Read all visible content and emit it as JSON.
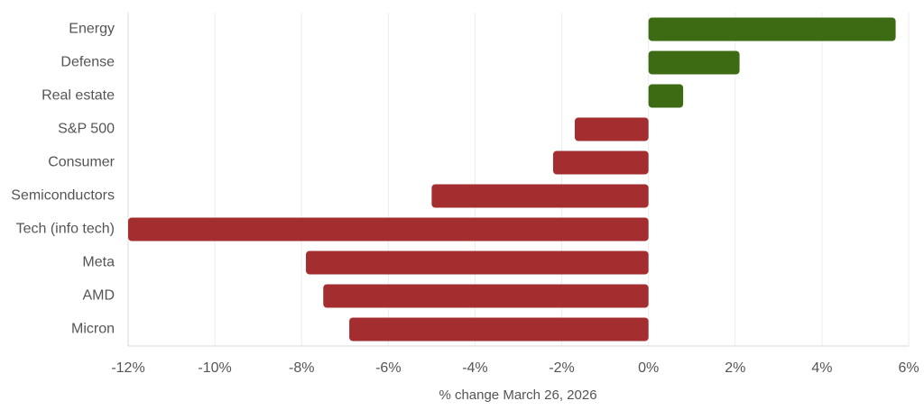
{
  "chart_data": {
    "type": "bar",
    "orientation": "horizontal",
    "x_label": "% change March 26, 2026",
    "categories": [
      "Energy",
      "Defense",
      "Real estate",
      "S&P 500",
      "Consumer",
      "Semiconductors",
      "Tech (info tech)",
      "Meta",
      "AMD",
      "Micron"
    ],
    "values": [
      5.7,
      2.1,
      0.8,
      -1.7,
      -2.2,
      -5.0,
      -12.0,
      -7.9,
      -7.5,
      -6.9
    ],
    "positive_color": "#3d6b14",
    "negative_color": "#a32d2f",
    "xlim": [
      -12,
      6
    ],
    "xticks": [
      {
        "value": -12,
        "label": "-12%"
      },
      {
        "value": -10,
        "label": "-10%"
      },
      {
        "value": -8,
        "label": "-8%"
      },
      {
        "value": -6,
        "label": "-6%"
      },
      {
        "value": -4,
        "label": "-4%"
      },
      {
        "value": -2,
        "label": "-2%"
      },
      {
        "value": 0,
        "label": "0%"
      },
      {
        "value": 2,
        "label": "2%"
      },
      {
        "value": 4,
        "label": "4%"
      },
      {
        "value": 6,
        "label": "6%"
      }
    ],
    "grid": true
  }
}
